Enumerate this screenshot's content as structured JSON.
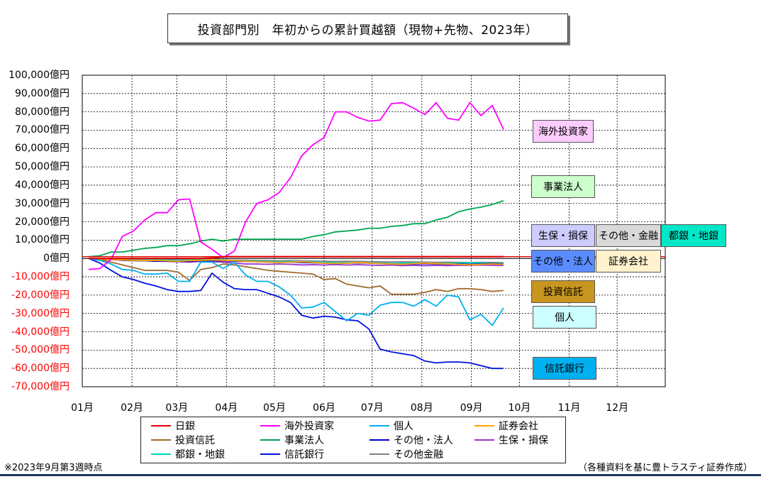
{
  "title": "投資部門別　年初からの累計買越額（現物+先物、2023年）",
  "footnote": "※2023年9月第3週時点",
  "source": "（各種資料を基に豊トラスティ証券作成）",
  "y_labels": [
    "100,000億円",
    "90,000億円",
    "80,000億円",
    "70,000億円",
    "60,000億円",
    "50,000億円",
    "40,000億円",
    "30,000億円",
    "20,000億円",
    "10,000億円",
    "0億円",
    "-10,000億円",
    "-20,000億円",
    "-30,000億円",
    "-40,000億円",
    "-50,000億円",
    "-60,000億円",
    "-70,000億円"
  ],
  "x_labels": [
    "01月",
    "02月",
    "03月",
    "04月",
    "05月",
    "06月",
    "07月",
    "08月",
    "09月",
    "10月",
    "11月",
    "12月"
  ],
  "tags": {
    "overseas": "海外投資家",
    "business": "事業法人",
    "life": "生保・損保",
    "other_fin": "その他・金融",
    "city_bank": "都銀・地銀",
    "other_corp": "その他・法人",
    "securities": "証券会社",
    "invest_trust": "投資信託",
    "individual": "個人",
    "trust_bank": "信託銀行"
  },
  "legend": [
    "日銀",
    "海外投資家",
    "個人",
    "証券会社",
    "投資信託",
    "事業法人",
    "その他・法人",
    "生保・損保",
    "都銀・地銀",
    "信託銀行",
    "その他金融"
  ],
  "chart_data": {
    "type": "line",
    "title": "投資部門別　年初からの累計買越額（現物+先物、2023年）",
    "ylabel": "億円",
    "ylim": [
      -70000,
      100000
    ],
    "x_range_weeks": [
      0,
      52
    ],
    "x_ticks": [
      "01月",
      "02月",
      "03月",
      "04月",
      "05月",
      "06月",
      "07月",
      "08月",
      "09月",
      "10月",
      "11月",
      "12月"
    ],
    "grid": true,
    "x": [
      1,
      2,
      3,
      4,
      5,
      6,
      7,
      8,
      9,
      10,
      11,
      12,
      13,
      14,
      15,
      16,
      17,
      18,
      19,
      20,
      21,
      22,
      23,
      24,
      25,
      26,
      27,
      28,
      29,
      30,
      31,
      32,
      33,
      34,
      35,
      36,
      37,
      38
    ],
    "series": [
      {
        "name": "日銀",
        "color": "#e00000",
        "values": [
          0,
          0,
          0,
          0,
          0,
          0,
          0,
          0,
          0,
          0,
          0,
          300,
          1000,
          1000,
          1000,
          1000,
          1000,
          1000,
          1000,
          1000,
          1000,
          1000,
          1000,
          1000,
          1000,
          1000,
          1000,
          1000,
          1000,
          1000,
          1000,
          1000,
          1000,
          1000,
          1000,
          1000,
          1000,
          1000
        ]
      },
      {
        "name": "海外投資家",
        "color": "#ff00ff",
        "values": [
          -6000,
          -5500,
          -500,
          12000,
          15000,
          21000,
          25000,
          25000,
          32000,
          32500,
          9000,
          5000,
          500,
          4000,
          20000,
          30000,
          32000,
          36000,
          44000,
          56000,
          62000,
          66000,
          80000,
          80000,
          77000,
          75000,
          75500,
          84500,
          85000,
          82000,
          78500,
          85000,
          76500,
          75500,
          85000,
          78000,
          83500,
          70500
        ]
      },
      {
        "name": "個人",
        "color": "#00b0f0",
        "values": [
          0,
          -1000,
          -3000,
          -6000,
          -6500,
          -8500,
          -8500,
          -8000,
          -12500,
          -12500,
          -2000,
          -2000,
          -5500,
          -2000,
          -9000,
          -12500,
          -12500,
          -15500,
          -20000,
          -27000,
          -26500,
          -24000,
          -29000,
          -34000,
          -30000,
          -31000,
          -25500,
          -24000,
          -24000,
          -26000,
          -22500,
          -26000,
          -20000,
          -21000,
          -33500,
          -30500,
          -36500,
          -27000
        ]
      },
      {
        "name": "証券会社",
        "color": "#ffa500",
        "values": [
          0,
          -300,
          -500,
          -800,
          -1000,
          -1200,
          -1000,
          -1300,
          -1500,
          -1200,
          -1000,
          -800,
          -1000,
          -1200,
          -1500,
          -1800,
          -2000,
          -2200,
          -2000,
          -1800,
          -2200,
          -2500,
          -2800,
          -2500,
          -2200,
          -2500,
          -2800,
          -3000,
          -3200,
          -2800,
          -2500,
          -2800,
          -3000,
          -3200,
          -3500,
          -3200,
          -3000,
          -3200
        ]
      },
      {
        "name": "投資信託",
        "color": "#a06a2c",
        "values": [
          0,
          -500,
          -2000,
          -3500,
          -5000,
          -6500,
          -6500,
          -6500,
          -7500,
          -12000,
          -6000,
          -5000,
          -3000,
          -3500,
          -4500,
          -5500,
          -6500,
          -7000,
          -7500,
          -8000,
          -8500,
          -11500,
          -11000,
          -14000,
          -15000,
          -16000,
          -15000,
          -19500,
          -19500,
          -19500,
          -18500,
          -17000,
          -18000,
          -16500,
          -16500,
          -17000,
          -18000,
          -17500
        ]
      },
      {
        "name": "事業法人",
        "color": "#00a550",
        "values": [
          1000,
          1500,
          3500,
          3500,
          4500,
          5500,
          6000,
          7000,
          7000,
          8000,
          9500,
          10500,
          9500,
          10500,
          10500,
          10500,
          10500,
          10500,
          10500,
          10500,
          12000,
          13000,
          14500,
          15000,
          15500,
          16500,
          16500,
          17500,
          18000,
          19000,
          19000,
          21000,
          22500,
          25500,
          27000,
          28000,
          29500,
          31500
        ]
      },
      {
        "name": "その他・法人",
        "color": "#0000c0",
        "values": [
          0,
          -200,
          -500,
          -1000,
          -1200,
          -1300,
          -1500,
          -1500,
          -1600,
          -1600,
          -1200,
          -1200,
          -1300,
          -1500,
          -1600,
          -1800,
          -2000,
          -2200,
          -2000,
          -2200,
          -2400,
          -2600,
          -2800,
          -2600,
          -2400,
          -2600,
          -2800,
          -3000,
          -3200,
          -3000,
          -2800,
          -3000,
          -3200,
          -3000,
          -3200,
          -3000,
          -2800,
          -3000
        ]
      },
      {
        "name": "生保・損保",
        "color": "#9933cc",
        "values": [
          0,
          -300,
          -600,
          -800,
          -1000,
          -1200,
          -1400,
          -1600,
          -1800,
          -2000,
          -1600,
          -1800,
          -2000,
          -2500,
          -3000,
          -3000,
          -3200,
          -3000,
          -3200,
          -3500,
          -3400,
          -3600,
          -3300,
          -3600,
          -3400,
          -3600,
          -3800,
          -3600,
          -3900,
          -3700,
          -3900,
          -3800,
          -3900,
          -3700,
          -3800,
          -3600,
          -3700,
          -3800
        ]
      },
      {
        "name": "都銀・地銀",
        "color": "#00d2c0",
        "values": [
          0,
          -200,
          -400,
          -500,
          -700,
          -900,
          -700,
          -800,
          -1000,
          -900,
          -700,
          -800,
          -1000,
          -1200,
          -1400,
          -1500,
          -1700,
          -1800,
          -1600,
          -1800,
          -1900,
          -2100,
          -2300,
          -2200,
          -2400,
          -2300,
          -2500,
          -2700,
          -2600,
          -2400,
          -2600,
          -2800,
          -2700,
          -2500,
          -2300,
          -2500,
          -2700,
          -2600
        ]
      },
      {
        "name": "信託銀行",
        "color": "#0010e0",
        "values": [
          0,
          -2500,
          -6500,
          -10000,
          -11500,
          -13500,
          -15000,
          -17000,
          -18000,
          -18000,
          -17500,
          -8000,
          -13000,
          -16500,
          -17000,
          -17000,
          -19000,
          -21000,
          -24000,
          -31000,
          -32500,
          -31500,
          -32000,
          -33500,
          -34000,
          -38500,
          -49500,
          -51000,
          -52000,
          -53000,
          -56000,
          -57000,
          -56500,
          -56500,
          -57000,
          -58500,
          -60000,
          -60000
        ]
      },
      {
        "name": "その他金融",
        "color": "#808080",
        "values": [
          0,
          -100,
          -200,
          -300,
          -400,
          -500,
          -500,
          -600,
          -700,
          -700,
          -600,
          -700,
          -800,
          -900,
          -1000,
          -1100,
          -1200,
          -1300,
          -1200,
          -1300,
          -1400,
          -1500,
          -1600,
          -1500,
          -1600,
          -1700,
          -1800,
          -1900,
          -1800,
          -1900,
          -2000,
          -2100,
          -2000,
          -2100,
          -2200,
          -2100,
          -2200,
          -2300
        ]
      }
    ]
  },
  "colors": {
    "overseas_tag": "#ffccff",
    "business_tag": "#ccffcc",
    "life_tag": "#ccccff",
    "other_fin_tag": "#d9d9d9",
    "city_bank_tag": "#00e8c8",
    "other_corp_tag": "#5b8cff",
    "securities_tag": "#fff2cc",
    "invest_trust_tag": "#c8961e",
    "individual_tag": "#ccffff",
    "trust_bank_tag": "#00b0f0"
  }
}
